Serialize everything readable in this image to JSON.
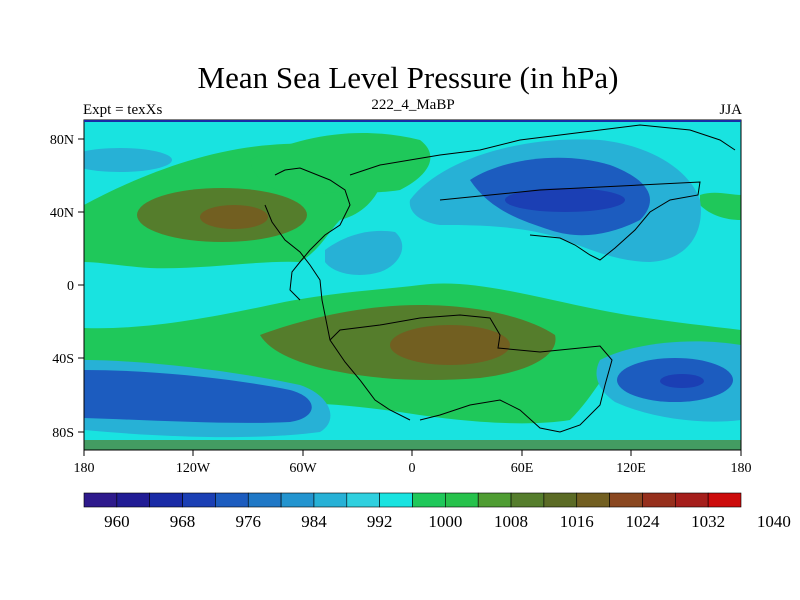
{
  "title": "Mean Sea Level Pressure (in hPa)",
  "left_label": "Expt = texXs",
  "center_label": "222_4_MaBP",
  "right_label": "JJA",
  "map": {
    "lon_ticks": [
      "180",
      "120W",
      "60W",
      "0",
      "60E",
      "120E",
      "180"
    ],
    "lat_ticks": [
      "80N",
      "40N",
      "0",
      "40S",
      "80S"
    ]
  },
  "colorbar": {
    "colors": [
      "#2e1a8c",
      "#211c95",
      "#1a2ba6",
      "#1b3fb4",
      "#1c5cbf",
      "#1f78c6",
      "#2394cf",
      "#27b1d6",
      "#2fd0df",
      "#19e3e0",
      "#1fc85a",
      "#27c24c",
      "#4f9d33",
      "#557d2c",
      "#5b6b25",
      "#725f21",
      "#8a4720",
      "#962f1c",
      "#a51e1b",
      "#cc0b0b"
    ],
    "labels": [
      "960",
      "968",
      "976",
      "984",
      "992",
      "1000",
      "1008",
      "1016",
      "1024",
      "1032",
      "1040"
    ]
  },
  "fill_colors": {
    "background": "#19e3e0",
    "green": "#1fc85a",
    "olive": "#557d2c",
    "brown": "#725f21",
    "lightblue": "#27b1d6",
    "blue": "#1c5cbf",
    "darkblue": "#1b3fb4"
  }
}
